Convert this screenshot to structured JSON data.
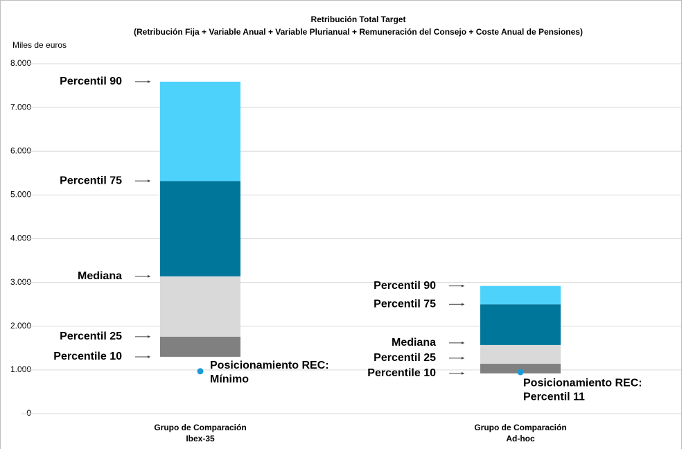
{
  "chart_data": {
    "type": "floating_bar",
    "title": [
      "Retribución Total Target",
      "(Retribución Fija + Variable Anual + Variable Plurianual + Remuneración del Consejo + Coste Anual de Pensiones)"
    ],
    "y_label": "Miles de euros",
    "categories": [
      [
        "Grupo de Comparación",
        "Ibex-35"
      ],
      [
        "Grupo de Comparación",
        "Ad-hoc"
      ]
    ],
    "series": [
      {
        "name": "Percentile 10",
        "values": [
          1300,
          920
        ]
      },
      {
        "name": "Percentil 25",
        "color": "#808080",
        "values": [
          1760,
          1140
        ]
      },
      {
        "name": "Mediana",
        "color": "#d9d9d9",
        "values": [
          3140,
          1570
        ]
      },
      {
        "name": "Percentil 75",
        "color": "#00769b",
        "values": [
          5320,
          2500
        ]
      },
      {
        "name": "Percentil 90",
        "color": "#4dd2fb",
        "values": [
          7590,
          2920
        ]
      }
    ],
    "rec": {
      "color": "#1a9bd7",
      "values": [
        970,
        950
      ],
      "labels": [
        [
          "Posicionamiento REC:",
          "Mínimo"
        ],
        [
          "Posicionamiento REC:",
          "Percentil 11"
        ]
      ]
    },
    "ylim": [
      0,
      8000
    ],
    "yticks": [
      0,
      {
        "value": 1000,
        "label": "1.000"
      },
      {
        "value": 2000,
        "label": "2.000"
      },
      {
        "value": 3000,
        "label": "3.000"
      },
      {
        "value": 4000,
        "label": "4.000"
      },
      {
        "value": 5000,
        "label": "5.000"
      },
      {
        "value": 6000,
        "label": "6.000"
      },
      {
        "value": 7000,
        "label": "7.000"
      },
      {
        "value": 8000,
        "label": "8.000"
      }
    ],
    "grid": true
  }
}
